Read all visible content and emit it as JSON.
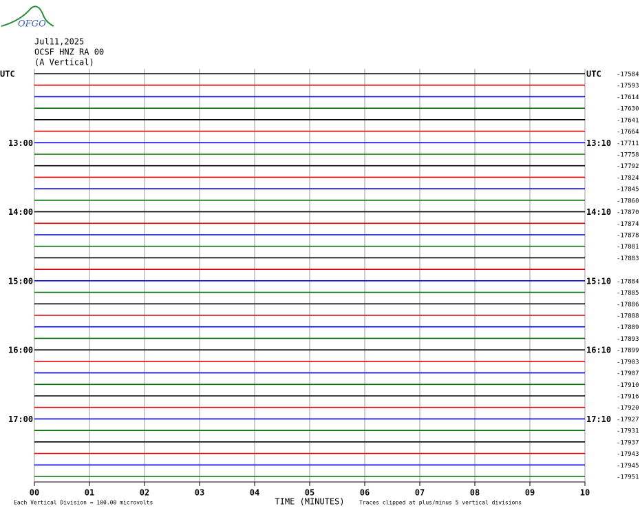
{
  "logo": "OFGO",
  "header": {
    "date": "Jul11,2025",
    "station": "OCSF HNZ RA 00",
    "component": "(A Vertical)"
  },
  "left_labels": [
    "UTC",
    null,
    null,
    null,
    null,
    null,
    "13:00",
    null,
    null,
    null,
    null,
    null,
    "14:00",
    null,
    null,
    null,
    null,
    null,
    "15:00",
    null,
    null,
    null,
    null,
    null,
    "16:00",
    null,
    null,
    null,
    null,
    null,
    "17:00",
    null,
    null,
    null,
    null,
    null
  ],
  "right_labels": [
    "UTC",
    null,
    null,
    null,
    null,
    null,
    "13:10",
    null,
    null,
    null,
    null,
    null,
    "14:10",
    null,
    null,
    null,
    null,
    null,
    "15:10",
    null,
    null,
    null,
    null,
    null,
    "16:10",
    null,
    null,
    null,
    null,
    null,
    "17:10",
    null,
    null,
    null,
    null,
    null
  ],
  "right_values": [
    "-17584",
    "-17593",
    "-17614",
    "-17630",
    "-17641",
    "-17664",
    "-17711",
    "-17758",
    "-17792",
    "-17824",
    "-17845",
    "-17860",
    "-17870",
    "-17874",
    "-17878",
    "-17881",
    "-17883",
    null,
    "-17884",
    "-17885",
    "-17886",
    "-17888",
    "-17889",
    "-17893",
    "-17899",
    "-17903",
    "-17907",
    "-17910",
    "-17916",
    "-17920",
    "-17927",
    "-17931",
    "-17937",
    "-17943",
    "-17945",
    "-17951"
  ],
  "trace_colors": [
    "#000000",
    "#e00000",
    "#0000e0",
    "#007000"
  ],
  "xticks": [
    "00",
    "01",
    "02",
    "03",
    "04",
    "05",
    "06",
    "07",
    "08",
    "09",
    "10"
  ],
  "xlabel": "TIME (MINUTES)",
  "footer_left": "Each Vertical Division =  100.00 microvolts",
  "footer_right": "Traces clipped at plus/minus 5 vertical divisions"
}
